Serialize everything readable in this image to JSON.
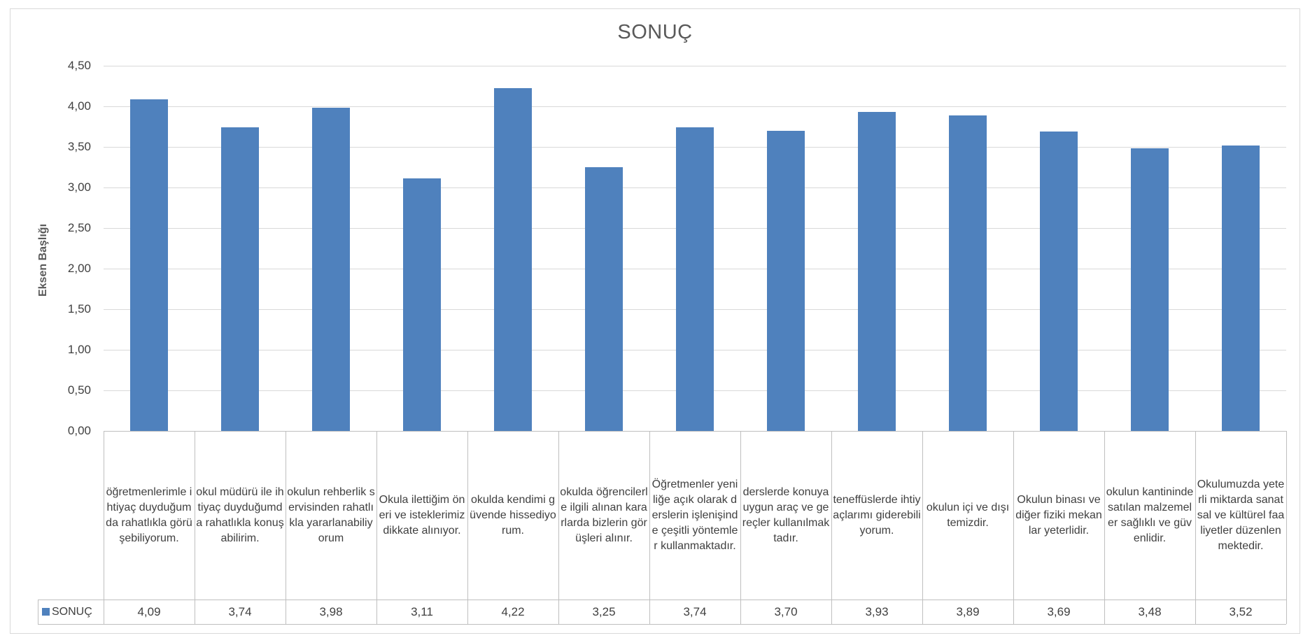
{
  "chart_data": {
    "type": "bar",
    "title": "SONUÇ",
    "ylabel": "Eksen Başlığı",
    "xlabel": "",
    "ylim": [
      0,
      4.5
    ],
    "yticks": [
      "0,00",
      "0,50",
      "1,00",
      "1,50",
      "2,00",
      "2,50",
      "3,00",
      "3,50",
      "4,00",
      "4,50"
    ],
    "grid": true,
    "legend_placement": "data-table",
    "bar_color": "#4f81bd",
    "categories": [
      "öğretmenlerimle ihtiyaç duyduğumda rahatlıkla görüşebiliyorum.",
      "okul müdürü ile ihtiyaç duyduğumda rahatlıkla konuşabilirim.",
      "okulun rehberlik servisinden rahatlıkla yararlanabiliyorum",
      "Okula ilettiğim öneri ve isteklerimiz dikkate alınıyor.",
      "okulda kendimi güvende hissediyorum.",
      "okulda öğrencilerle ilgili alınan kararlarda bizlerin görüşleri alınır.",
      "Öğretmenler yeniliğe açık olarak derslerin işlenişinde çeşitli yöntemler kullanmaktadır.",
      "derslerde konuya uygun araç ve gereçler kullanılmaktadır.",
      "teneffüslerde ihtiyaçlarımı giderebiliyorum.",
      "okulun içi ve dışı temizdir.",
      "Okulun binası ve diğer fiziki mekanlar yeterlidir.",
      "okulun kantininde satılan malzemeler sağlıklı ve güvenlidir.",
      "Okulumuzda yeterli miktarda sanatsal ve kültürel faaliyetler düzenlenmektedir."
    ],
    "series": [
      {
        "name": "SONUÇ",
        "values": [
          4.09,
          3.74,
          3.98,
          3.11,
          4.22,
          3.25,
          3.74,
          3.7,
          3.93,
          3.89,
          3.69,
          3.48,
          3.52
        ],
        "labels": [
          "4,09",
          "3,74",
          "3,98",
          "3,11",
          "4,22",
          "3,25",
          "3,74",
          "3,70",
          "3,93",
          "3,89",
          "3,69",
          "3,48",
          "3,52"
        ]
      }
    ]
  }
}
